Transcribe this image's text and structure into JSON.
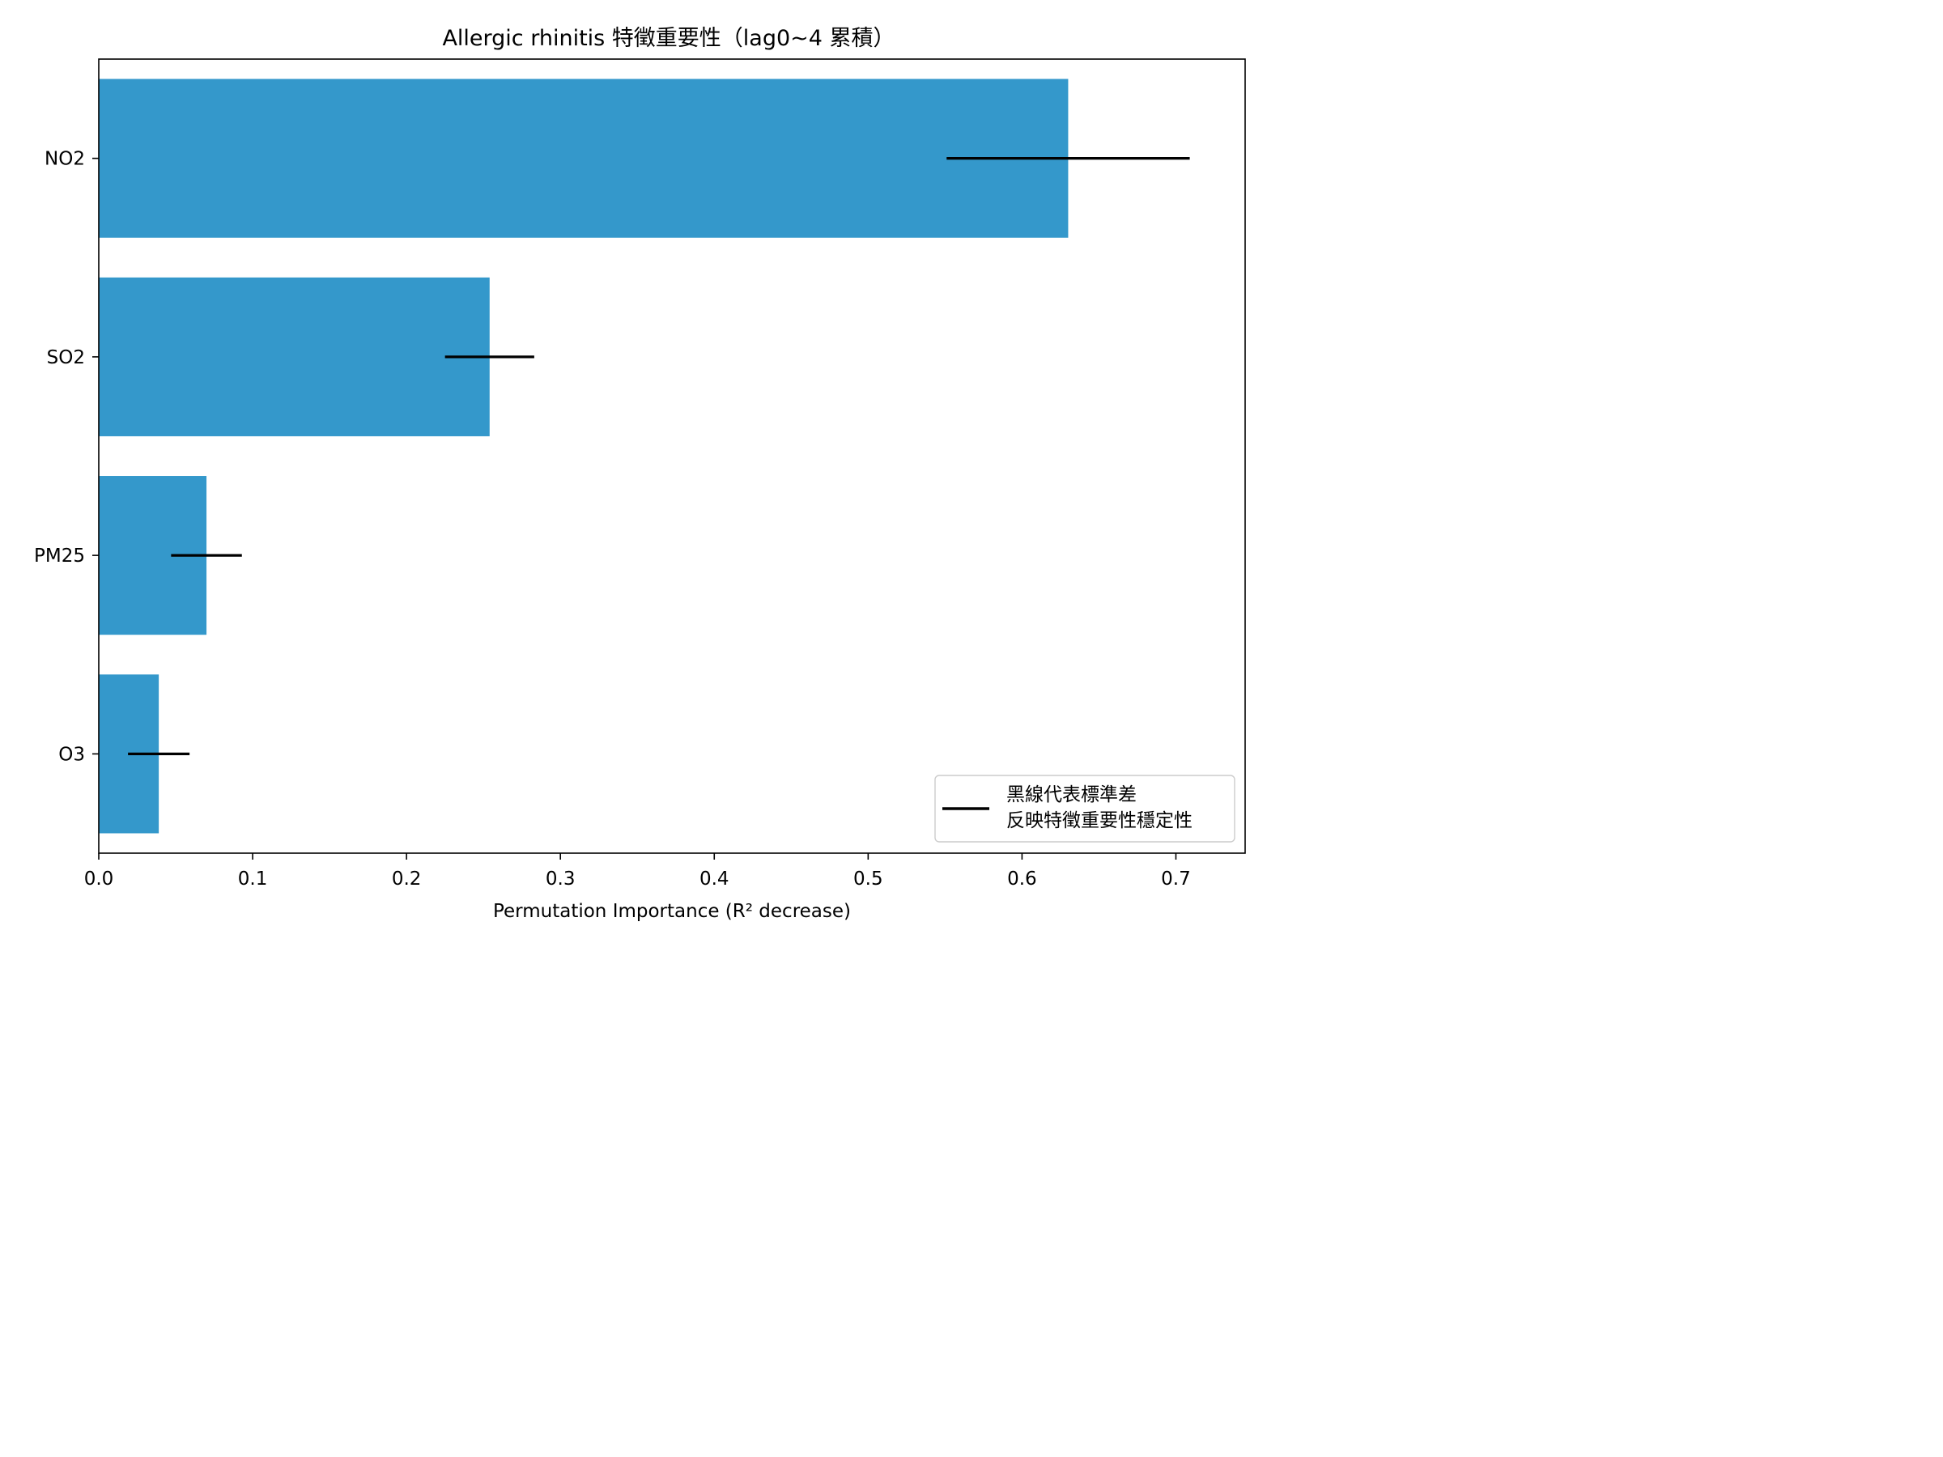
{
  "chart_data": {
    "type": "bar",
    "orientation": "horizontal",
    "title": "Allergic rhinitis 特徵重要性（lag0~4 累積）",
    "xlabel": "Permutation Importance (R² decrease)",
    "ylabel": "",
    "categories": [
      "NO2",
      "SO2",
      "PM25",
      "O3"
    ],
    "values": [
      0.63,
      0.254,
      0.07,
      0.039
    ],
    "error": [
      0.079,
      0.029,
      0.023,
      0.02
    ],
    "xlim": [
      0.0,
      0.745
    ],
    "xticks": [
      "0.0",
      "0.1",
      "0.2",
      "0.3",
      "0.4",
      "0.5",
      "0.6",
      "0.7"
    ],
    "grid": false,
    "bar_color": "#3498cb",
    "error_color": "#000000",
    "legend": {
      "placement": "lower-right",
      "lines": [
        "黑線代表標準差",
        "反映特徵重要性穩定性"
      ]
    }
  }
}
